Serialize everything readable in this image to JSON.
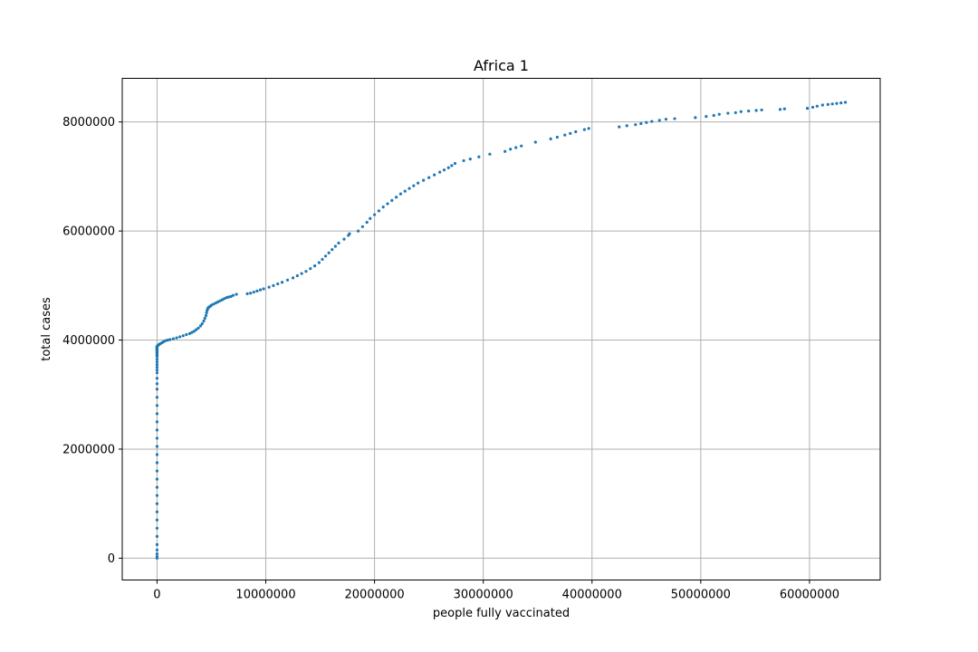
{
  "chart_data": {
    "type": "scatter",
    "title": "Africa 1",
    "xlabel": "people fully vaccinated",
    "ylabel": "total cases",
    "xlim": [
      -3200000,
      66500000
    ],
    "ylim": [
      -400000,
      8800000
    ],
    "xticks": [
      0,
      10000000,
      20000000,
      30000000,
      40000000,
      50000000,
      60000000
    ],
    "xtick_labels": [
      "0",
      "10000000",
      "20000000",
      "30000000",
      "40000000",
      "50000000",
      "60000000"
    ],
    "yticks": [
      0,
      2000000,
      4000000,
      6000000,
      8000000
    ],
    "ytick_labels": [
      "0",
      "2000000",
      "4000000",
      "6000000",
      "8000000"
    ],
    "grid": true,
    "color": "#1f77b4",
    "series": [
      {
        "x": [
          0,
          0,
          0,
          0,
          0,
          0,
          0,
          0,
          0,
          0,
          0,
          0,
          0,
          0,
          0,
          0,
          0,
          0,
          0,
          0,
          0,
          0,
          0,
          0,
          0,
          0,
          0,
          0,
          0,
          0,
          0,
          0,
          0,
          0,
          0,
          0,
          0,
          0,
          0,
          0,
          0,
          0,
          0,
          0,
          0,
          0,
          0,
          0,
          0,
          0,
          0,
          20000,
          60000,
          120000,
          200000,
          300000,
          450000,
          600000,
          800000,
          1000000,
          1200000,
          1500000,
          1800000,
          2100000,
          2400000,
          2700000,
          3000000,
          3200000,
          3400000,
          3600000,
          3800000,
          4000000,
          4150000,
          4300000,
          4400000,
          4500000,
          4550000,
          4600000,
          4650000,
          4700000,
          4750000,
          4800000,
          4900000,
          5000000,
          5200000,
          5400000,
          5600000,
          5800000,
          6000000,
          6200000,
          6400000,
          6600000,
          6800000,
          7000000,
          7300000,
          8300000,
          8600000,
          8900000,
          9200000,
          9500000,
          9800000,
          10300000,
          10700000,
          11100000,
          11500000,
          12000000,
          12500000,
          12900000,
          13300000,
          13700000,
          14100000,
          14500000,
          14900000,
          15200000,
          15500000,
          15800000,
          16100000,
          16400000,
          16700000,
          17200000,
          17600000,
          17700000,
          18500000,
          18900000,
          19300000,
          19600000,
          20000000,
          20400000,
          20800000,
          21200000,
          21600000,
          22000000,
          22400000,
          22800000,
          23200000,
          23600000,
          24000000,
          24500000,
          25000000,
          25500000,
          26000000,
          26400000,
          26800000,
          27100000,
          27400000,
          28200000,
          28800000,
          29600000,
          30600000,
          32000000,
          32500000,
          33000000,
          33500000,
          34800000,
          36200000,
          36800000,
          37500000,
          38000000,
          38500000,
          39300000,
          39700000,
          42500000,
          43200000,
          44000000,
          44500000,
          45000000,
          45500000,
          46200000,
          46800000,
          47600000,
          49500000,
          50500000,
          51200000,
          51700000,
          52500000,
          53200000,
          53700000,
          54400000,
          55100000,
          55600000,
          57300000,
          57700000,
          59800000,
          60300000,
          60700000,
          61200000,
          61700000,
          62100000,
          62500000,
          62900000,
          63300000
        ],
        "y": [
          0,
          30000,
          80000,
          150000,
          250000,
          400000,
          550000,
          700000,
          850000,
          1000000,
          1150000,
          1300000,
          1450000,
          1600000,
          1750000,
          1900000,
          2050000,
          2200000,
          2350000,
          2500000,
          2650000,
          2800000,
          2950000,
          3100000,
          3200000,
          3300000,
          3400000,
          3450000,
          3500000,
          3550000,
          3600000,
          3650000,
          3700000,
          3720000,
          3740000,
          3760000,
          3770000,
          3780000,
          3790000,
          3800000,
          3810000,
          3820000,
          3830000,
          3840000,
          3850000,
          3855000,
          3860000,
          3865000,
          3870000,
          3875000,
          3880000,
          3890000,
          3900000,
          3910000,
          3920000,
          3935000,
          3950000,
          3970000,
          3990000,
          4000000,
          4010000,
          4025000,
          4040000,
          4060000,
          4080000,
          4100000,
          4120000,
          4140000,
          4160000,
          4190000,
          4220000,
          4260000,
          4300000,
          4350000,
          4400000,
          4450000,
          4500000,
          4540000,
          4570000,
          4590000,
          4600000,
          4610000,
          4620000,
          4640000,
          4660000,
          4680000,
          4700000,
          4720000,
          4740000,
          4760000,
          4780000,
          4790000,
          4800000,
          4820000,
          4840000,
          4850000,
          4860000,
          4880000,
          4900000,
          4920000,
          4940000,
          4970000,
          5000000,
          5030000,
          5060000,
          5100000,
          5140000,
          5180000,
          5220000,
          5260000,
          5310000,
          5360000,
          5420000,
          5480000,
          5540000,
          5600000,
          5660000,
          5720000,
          5780000,
          5850000,
          5920000,
          5950000,
          6000000,
          6080000,
          6160000,
          6230000,
          6300000,
          6370000,
          6440000,
          6500000,
          6560000,
          6620000,
          6680000,
          6730000,
          6780000,
          6830000,
          6880000,
          6930000,
          6980000,
          7030000,
          7080000,
          7120000,
          7160000,
          7200000,
          7240000,
          7290000,
          7320000,
          7360000,
          7410000,
          7460000,
          7500000,
          7530000,
          7560000,
          7630000,
          7690000,
          7720000,
          7760000,
          7790000,
          7820000,
          7860000,
          7880000,
          7910000,
          7930000,
          7950000,
          7970000,
          7990000,
          8010000,
          8030000,
          8050000,
          8060000,
          8080000,
          8100000,
          8120000,
          8140000,
          8160000,
          8170000,
          8190000,
          8200000,
          8210000,
          8220000,
          8230000,
          8240000,
          8250000,
          8270000,
          8290000,
          8310000,
          8320000,
          8330000,
          8340000,
          8350000,
          8360000
        ]
      }
    ]
  }
}
